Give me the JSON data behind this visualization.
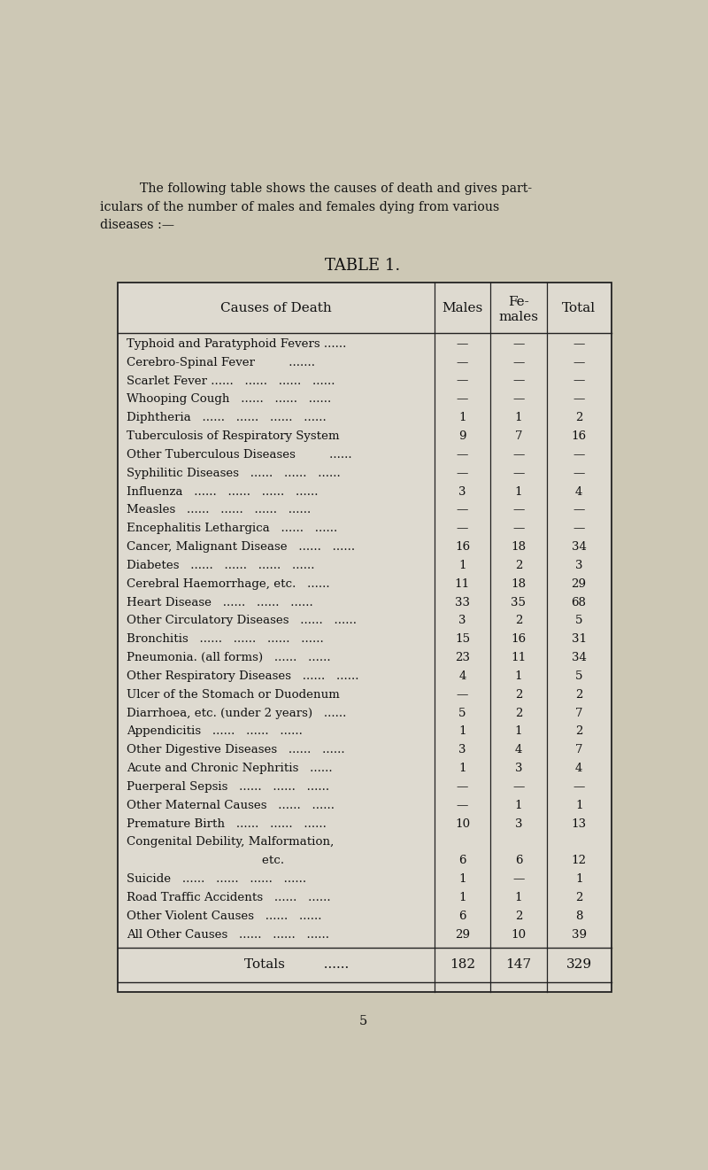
{
  "intro_text_line1": "    The following table shows the causes of death and gives part-",
  "intro_text_line2": "iculars of the number of males and females dying from various",
  "intro_text_line3": "diseases :—",
  "table_title": "TABLE 1.",
  "rows": [
    [
      "Typhoid and Paratyphoid Fevers ......",
      "—",
      "—",
      "—"
    ],
    [
      "Cerebro-Spinal Fever         .......",
      "—",
      "—",
      "—"
    ],
    [
      "Scarlet Fever ......   ......   ......   ......",
      "—",
      "—",
      "—"
    ],
    [
      "Whooping Cough   ......   ......   ......",
      "—",
      "—",
      "—"
    ],
    [
      "Diphtheria   ......   ......   ......   ......",
      "1",
      "1",
      "2"
    ],
    [
      "Tuberculosis of Respiratory System",
      "9",
      "7",
      "16"
    ],
    [
      "Other Tuberculous Diseases         ......",
      "—",
      "—",
      "—"
    ],
    [
      "Syphilitic Diseases   ......   ......   ......",
      "—",
      "—",
      "—"
    ],
    [
      "Influenza   ......   ......   ......   ......",
      "3",
      "1",
      "4"
    ],
    [
      "Measles   ......   ......   ......   ......",
      "—",
      "—",
      "—"
    ],
    [
      "Encephalitis Lethargica   ......   ......",
      "—",
      "—",
      "—"
    ],
    [
      "Cancer, Malignant Disease   ......   ......",
      "16",
      "18",
      "34"
    ],
    [
      "Diabetes   ......   ......   ......   ......",
      "1",
      "2",
      "3"
    ],
    [
      "Cerebral Haemorrhage, etc.   ......",
      "11",
      "18",
      "29"
    ],
    [
      "Heart Disease   ......   ......   ......",
      "33",
      "35",
      "68"
    ],
    [
      "Other Circulatory Diseases   ......   ......",
      "3",
      "2",
      "5"
    ],
    [
      "Bronchitis   ......   ......   ......   ......",
      "15",
      "16",
      "31"
    ],
    [
      "Pneumonia. (all forms)   ......   ......",
      "23",
      "11",
      "34"
    ],
    [
      "Other Respiratory Diseases   ......   ......",
      "4",
      "1",
      "5"
    ],
    [
      "Ulcer of the Stomach or Duodenum",
      "—",
      "2",
      "2"
    ],
    [
      "Diarrhoea, etc. (under 2 years)   ......",
      "5",
      "2",
      "7"
    ],
    [
      "Appendicitis   ......   ......   ......",
      "1",
      "1",
      "2"
    ],
    [
      "Other Digestive Diseases   ......   ......",
      "3",
      "4",
      "7"
    ],
    [
      "Acute and Chronic Nephritis   ......",
      "1",
      "3",
      "4"
    ],
    [
      "Puerperal Sepsis   ......   ......   ......",
      "—",
      "—",
      "—"
    ],
    [
      "Other Maternal Causes   ......   ......",
      "—",
      "1",
      "1"
    ],
    [
      "Premature Birth   ......   ......   ......",
      "10",
      "3",
      "13"
    ],
    [
      "Congenital Debility, Malformation,",
      "",
      "",
      ""
    ],
    [
      "                                    etc.",
      "6",
      "6",
      "12"
    ],
    [
      "Suicide   ......   ......   ......   ......",
      "1",
      "—",
      "1"
    ],
    [
      "Road Traffic Accidents   ......   ......",
      "1",
      "1",
      "2"
    ],
    [
      "Other Violent Causes   ......   ......",
      "6",
      "2",
      "8"
    ],
    [
      "All Other Causes   ......   ......   ......",
      "29",
      "10",
      "39"
    ]
  ],
  "totals_label": "Totals",
  "totals_dots": "......",
  "totals_vals": [
    "182",
    "147",
    "329"
  ],
  "bg_color": "#cdc8b5",
  "table_bg": "#dedad0",
  "border_color": "#222222",
  "text_color": "#111111",
  "page_number": "5",
  "col_header_1": "Causes of Death",
  "col_header_2": "Males",
  "col_header_3a": "Fe-",
  "col_header_3b": "males",
  "col_header_4": "Total"
}
